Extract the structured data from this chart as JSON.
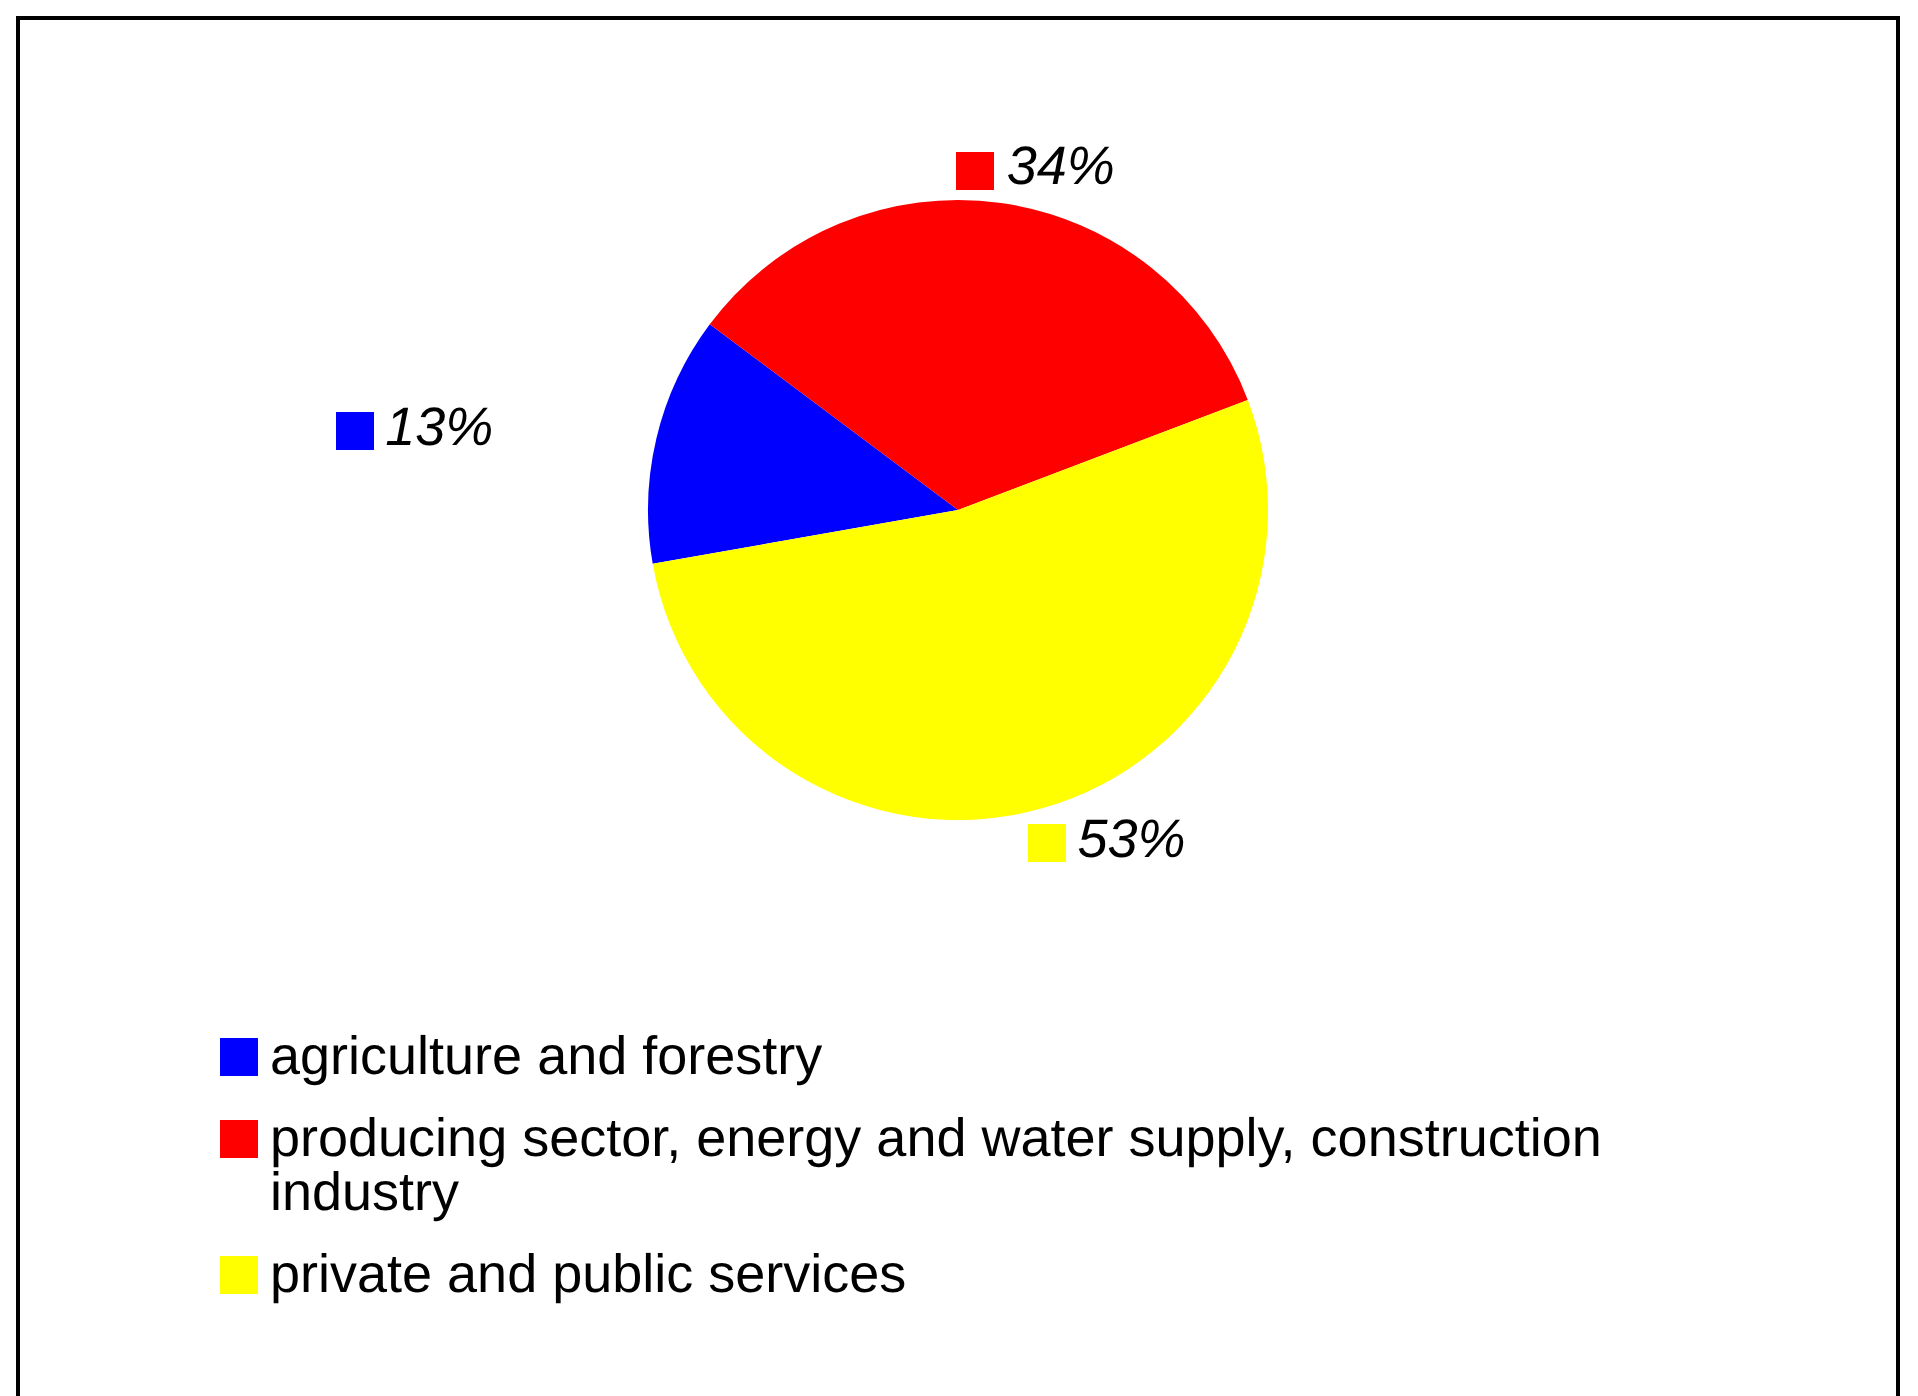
{
  "chart_data": {
    "type": "pie",
    "categories": [
      "agriculture and forestry",
      "producing sector, energy and water supply, construction industry",
      "private and public services"
    ],
    "values": [
      13,
      34,
      53
    ],
    "colors": [
      "#0000ff",
      "#ff0000",
      "#ffff00"
    ],
    "value_labels": [
      "13%",
      "34%",
      "53%"
    ],
    "legend": "bottom"
  }
}
